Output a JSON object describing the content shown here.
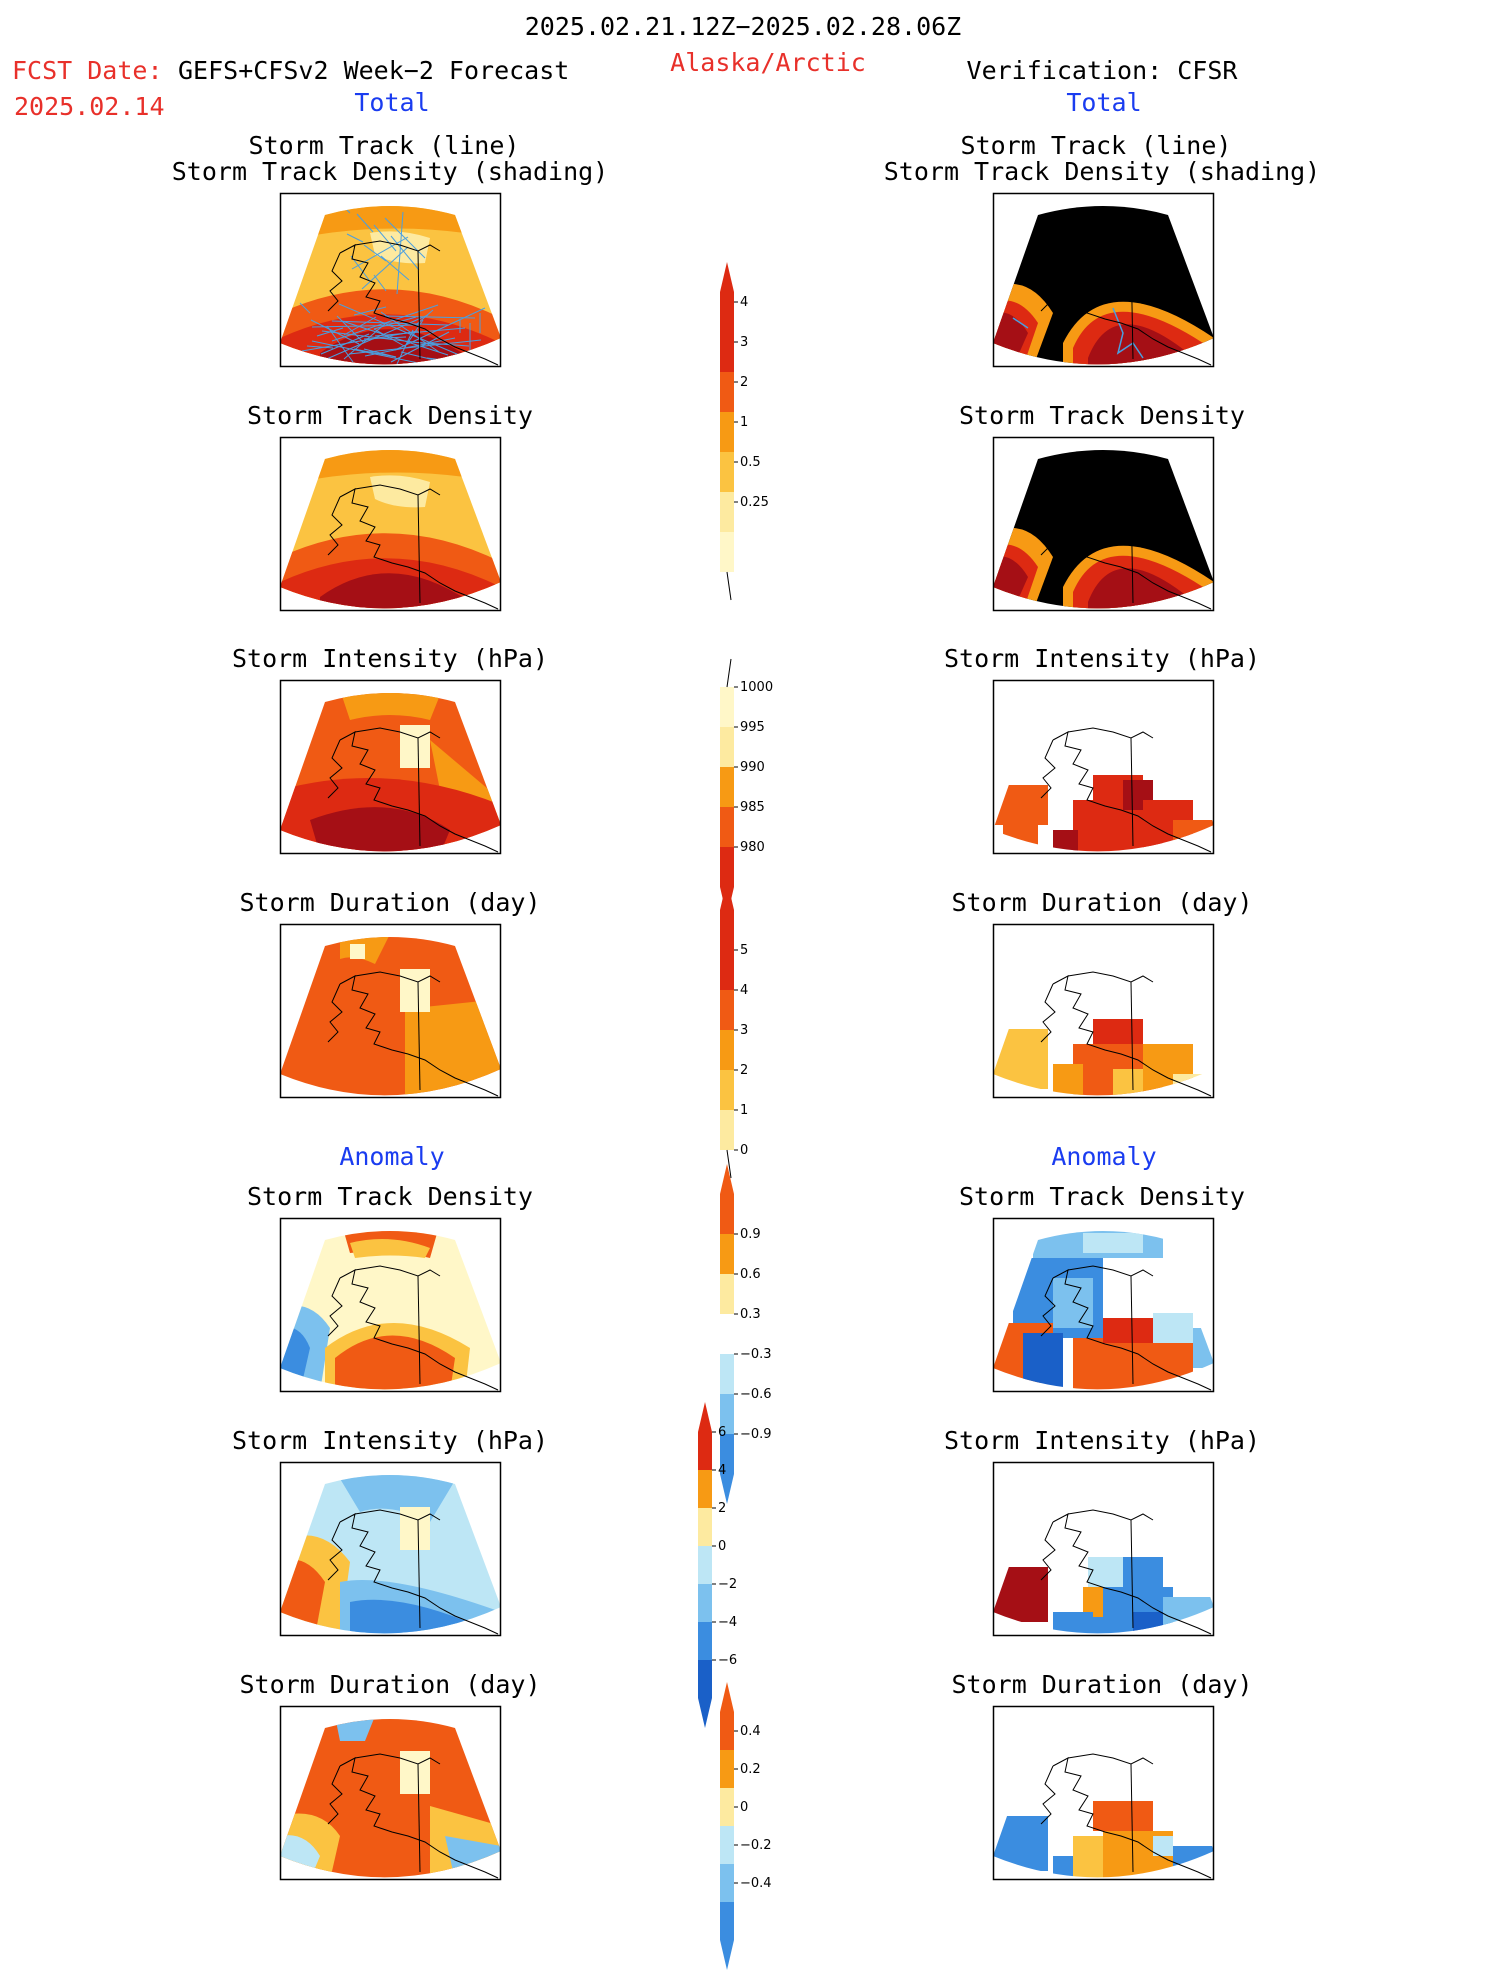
{
  "header": {
    "period": "2025.02.21.12Z−2025.02.28.06Z",
    "fcst_label": "FCST Date:",
    "fcst_desc": "GEFS+CFSv2 Week−2 Forecast",
    "fcst_date": "2025.02.14",
    "region": "Alaska/Arctic",
    "verification": "Verification: CFSR"
  },
  "columns": {
    "left_total": "Total",
    "right_total": "Total",
    "left_anomaly": "Anomaly",
    "right_anomaly": "Anomaly"
  },
  "panels": {
    "track_line": "Storm Track (line)",
    "track_shading": "Storm Track Density (shading)",
    "density": "Storm Track Density",
    "intensity": "Storm Intensity (hPa)",
    "duration": "Storm Duration (day)"
  },
  "colors": {
    "c_dark_red": "#a50f15",
    "c_red": "#dd2a12",
    "c_orange_red": "#f05a14",
    "c_orange": "#f79a14",
    "c_light_orange": "#fbc341",
    "c_yellow": "#fdeaa0",
    "c_pale_yellow": "#fff7c8",
    "c_light_blue": "#bde6f5",
    "c_mid_blue": "#7cc1ee",
    "c_blue": "#3b8de0",
    "c_dark_blue": "#1a60c8",
    "track_line": "#4a9fe0"
  },
  "chart_data": [
    {
      "type": "heatmap",
      "name": "colorbar-total-density",
      "legend_ticks": [
        "0.25",
        "0.5",
        "1",
        "2",
        "3",
        "4"
      ]
    },
    {
      "type": "heatmap",
      "name": "colorbar-total-intensity",
      "legend_ticks": [
        "1000",
        "995",
        "990",
        "985",
        "980"
      ]
    },
    {
      "type": "heatmap",
      "name": "colorbar-total-duration",
      "legend_ticks": [
        "0",
        "1",
        "2",
        "3",
        "4",
        "5"
      ]
    },
    {
      "type": "heatmap",
      "name": "colorbar-anomaly-density",
      "legend_ticks": [
        "0.9",
        "0.6",
        "0.3",
        "−0.3",
        "−0.6",
        "−0.9"
      ]
    },
    {
      "type": "heatmap",
      "name": "colorbar-anomaly-intensity",
      "legend_ticks": [
        "6",
        "4",
        "2",
        "0",
        "−2",
        "−4",
        "−6"
      ]
    },
    {
      "type": "heatmap",
      "name": "colorbar-anomaly-duration",
      "legend_ticks": [
        "0.4",
        "0.2",
        "0",
        "−0.2",
        "−0.4"
      ]
    }
  ]
}
